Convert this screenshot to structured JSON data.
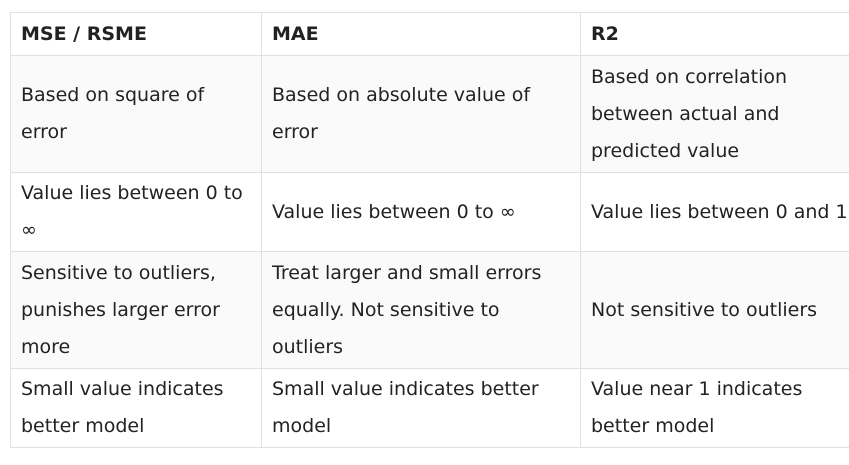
{
  "table": {
    "headers": [
      "MSE / RSME",
      "MAE",
      "R2"
    ],
    "rows": [
      [
        "Based on square of error",
        "Based on absolute value of error",
        "Based on correlation between actual and predicted value"
      ],
      [
        "Value lies between 0 to ∞",
        "Value lies between 0 to ∞",
        "Value lies between 0 and 1"
      ],
      [
        "Sensitive to outliers, punishes larger error more",
        "Treat larger and small errors equally. Not sensitive to outliers",
        "Not sensitive to outliers"
      ],
      [
        "Small value indicates better model",
        "Small value indicates better model",
        "Value near 1 indicates better model"
      ]
    ]
  }
}
